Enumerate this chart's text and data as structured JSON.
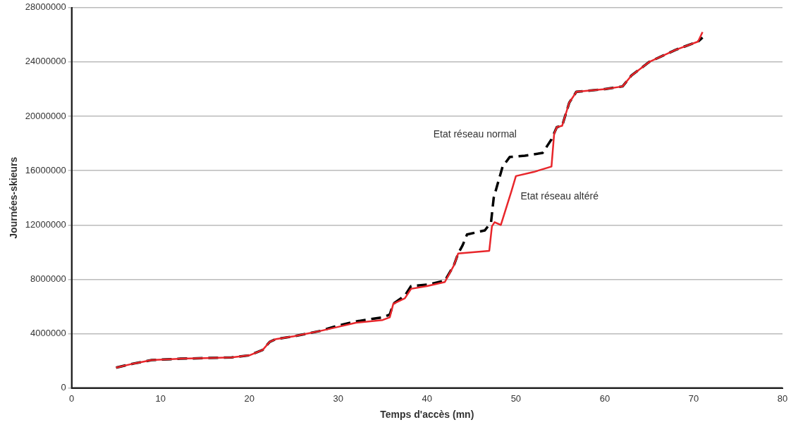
{
  "chart_data": {
    "type": "line",
    "xlabel": "Temps d'accès (mn)",
    "ylabel": "Journées-skieurs",
    "xlim": [
      0,
      80
    ],
    "xticks": [
      0,
      10,
      20,
      30,
      40,
      50,
      60,
      70,
      80
    ],
    "ylim": [
      0,
      28000000
    ],
    "yticks": [
      0,
      4000000,
      8000000,
      12000000,
      16000000,
      20000000,
      24000000,
      28000000
    ],
    "grid": "y",
    "legend": false,
    "marker": "none",
    "series": [
      {
        "name": "Etat réseau altéré",
        "color": "#e8262b",
        "line_style": "solid",
        "x": [
          5,
          7,
          9,
          12,
          15,
          18,
          20,
          21.5,
          22.3,
          23,
          25,
          28,
          30,
          32,
          35,
          35.8,
          36.2,
          37.5,
          38.2,
          40,
          42,
          43,
          43.5,
          47,
          47.3,
          47.6,
          48.3,
          49.5,
          50,
          52,
          54,
          54.3,
          54.6,
          55.2,
          56,
          56.8,
          60,
          62,
          63,
          65,
          68,
          70.5,
          71
        ],
        "values": [
          1500000,
          1800000,
          2050000,
          2150000,
          2200000,
          2250000,
          2400000,
          2800000,
          3400000,
          3600000,
          3800000,
          4200000,
          4500000,
          4800000,
          5000000,
          5200000,
          6200000,
          6600000,
          7300000,
          7500000,
          7800000,
          9000000,
          9900000,
          10100000,
          11900000,
          12200000,
          12000000,
          14500000,
          15600000,
          15900000,
          16300000,
          18700000,
          19200000,
          19300000,
          21000000,
          21800000,
          22000000,
          22200000,
          23000000,
          24000000,
          24900000,
          25500000,
          26200000
        ]
      },
      {
        "name": "Etat réseau normal",
        "color": "#000000",
        "line_style": "dashed",
        "x": [
          5,
          7,
          9,
          12,
          15,
          18,
          20,
          21.5,
          22.3,
          23,
          25,
          28,
          30,
          32,
          35,
          35.8,
          36.2,
          37.5,
          38.2,
          40,
          42,
          43,
          43.5,
          44,
          44.5,
          46.5,
          47.2,
          47.5,
          48.5,
          49.3,
          51,
          53,
          54,
          54.6,
          55.2,
          56,
          56.8,
          60,
          62,
          63,
          65,
          68,
          70.5,
          71
        ],
        "values": [
          1500000,
          1800000,
          2050000,
          2150000,
          2200000,
          2250000,
          2400000,
          2800000,
          3400000,
          3600000,
          3800000,
          4200000,
          4600000,
          4900000,
          5200000,
          5400000,
          6200000,
          6800000,
          7500000,
          7600000,
          7900000,
          9000000,
          9900000,
          10500000,
          11300000,
          11600000,
          12200000,
          14000000,
          16300000,
          17000000,
          17100000,
          17300000,
          18300000,
          19200000,
          19300000,
          21000000,
          21800000,
          22000000,
          22200000,
          23000000,
          24000000,
          24900000,
          25500000,
          25800000
        ]
      }
    ]
  }
}
